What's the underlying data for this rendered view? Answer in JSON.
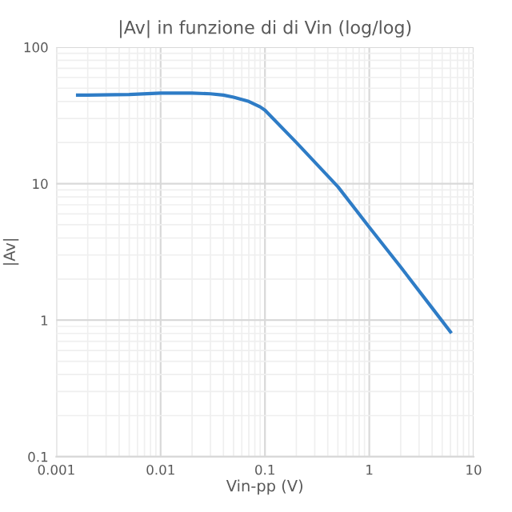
{
  "chart_data": {
    "type": "line",
    "title": "|Av| in funzione di di Vin (log/log)",
    "xlabel": "Vin-pp (V)",
    "ylabel": "|Av|",
    "log": "xy",
    "grid": true,
    "marker": "none",
    "line_style": "solid",
    "xlim": [
      0.001,
      10
    ],
    "ylim": [
      0.1,
      100
    ],
    "xticks": [
      0.001,
      0.01,
      0.1,
      1,
      10
    ],
    "yticks": [
      0.1,
      1,
      10,
      100
    ],
    "series": [
      {
        "color": "#2e7cc6",
        "x": [
          0.0016,
          0.002,
          0.005,
          0.01,
          0.02,
          0.03,
          0.04,
          0.05,
          0.07,
          0.09,
          0.1,
          0.2,
          0.5,
          1,
          2,
          4,
          6
        ],
        "values": [
          44.5,
          44.5,
          45,
          46,
          46,
          45.5,
          44.5,
          43,
          40,
          36.5,
          34.5,
          20,
          9.5,
          4.8,
          2.45,
          1.23,
          0.82
        ]
      }
    ]
  }
}
